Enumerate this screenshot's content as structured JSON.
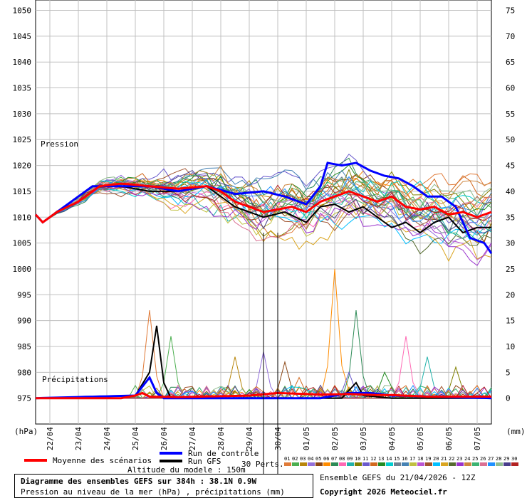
{
  "chart_data": {
    "type": "line",
    "title": "Diagramme des ensembles GEFS sur 384h : 38.1N 0.9W",
    "subtitle": "Pression au niveau de la mer (hPa) , précipitations (mm)",
    "run_info": "Ensemble GEFS du 21/04/2026 - 12Z",
    "copyright": "Copyright 2026 Meteociel.fr",
    "altitude": "Altitude du modele : 150m",
    "left_unit": "(hPa)",
    "right_unit": "(mm)",
    "pressure_label": "Pression",
    "precip_label": "Précipitations",
    "perts_label": "30 Perts.",
    "legend": {
      "mean": "Moyenne des scénarios",
      "control": "Run de contrôle",
      "gfs": "Run GFS"
    },
    "colors": {
      "mean": "#ff0000",
      "control": "#0000ff",
      "gfs": "#000000",
      "grid": "#c0c0c0"
    },
    "pressure_axis": {
      "min": 970,
      "max": 1052,
      "ticks": [
        1050,
        1045,
        1040,
        1035,
        1030,
        1025,
        1020,
        1015,
        1010,
        1005,
        1000,
        995,
        990,
        985,
        980,
        975
      ]
    },
    "precip_axis": {
      "min": -5,
      "max": 77,
      "ticks": [
        75,
        70,
        65,
        60,
        55,
        50,
        45,
        40,
        35,
        30,
        25,
        20,
        15,
        10,
        5,
        0
      ]
    },
    "x_labels": [
      "22/04",
      "23/04",
      "24/04",
      "25/04",
      "26/04",
      "27/04",
      "28/04",
      "29/04",
      "30/04",
      "01/05",
      "02/05",
      "03/05",
      "04/05",
      "05/05",
      "06/05",
      "07/05"
    ],
    "x_hours": {
      "start": 0,
      "end": 384,
      "step": 6
    },
    "member_codes": [
      "01",
      "02",
      "03",
      "04",
      "05",
      "06",
      "07",
      "08",
      "09",
      "10",
      "11",
      "12",
      "13",
      "14",
      "15",
      "16",
      "17",
      "18",
      "19",
      "20",
      "21",
      "22",
      "23",
      "24",
      "25",
      "26",
      "27",
      "28",
      "29",
      "30"
    ],
    "member_colors": [
      "#e07b39",
      "#4caf50",
      "#b8860b",
      "#9370db",
      "#8b4513",
      "#ff8c00",
      "#2e8b57",
      "#ff69b4",
      "#20b2aa",
      "#808000",
      "#6a5acd",
      "#d2691e",
      "#228b22",
      "#00ced1",
      "#708090",
      "#4682b4",
      "#c0c040",
      "#ba55d3",
      "#a0522d",
      "#00bfff",
      "#daa520",
      "#556b2f",
      "#9932cc",
      "#cd853f",
      "#3cb371",
      "#db7093",
      "#1e90ff",
      "#8fbc8f",
      "#483d8b",
      "#b22222"
    ],
    "series": [
      {
        "name": "Moyenne des scénarios",
        "pressure_key": [
          [
            0,
            1010.5
          ],
          [
            6,
            1009
          ],
          [
            18,
            1011
          ],
          [
            36,
            1013
          ],
          [
            54,
            1016
          ],
          [
            72,
            1016.5
          ],
          [
            96,
            1016
          ],
          [
            120,
            1015.5
          ],
          [
            144,
            1016
          ],
          [
            156,
            1015
          ],
          [
            168,
            1013
          ],
          [
            180,
            1012
          ],
          [
            192,
            1011
          ],
          [
            204,
            1011.5
          ],
          [
            216,
            1012
          ],
          [
            228,
            1011
          ],
          [
            240,
            1013
          ],
          [
            252,
            1014
          ],
          [
            264,
            1015
          ],
          [
            276,
            1014
          ],
          [
            288,
            1013
          ],
          [
            300,
            1014
          ],
          [
            312,
            1012
          ],
          [
            324,
            1011.5
          ],
          [
            336,
            1012
          ],
          [
            348,
            1010.5
          ],
          [
            360,
            1011
          ],
          [
            372,
            1010
          ],
          [
            384,
            1011
          ]
        ],
        "precip_key": [
          [
            0,
            0
          ],
          [
            72,
            0
          ],
          [
            84,
            0.5
          ],
          [
            90,
            1
          ],
          [
            96,
            0.3
          ],
          [
            120,
            0.2
          ],
          [
            180,
            0.5
          ],
          [
            204,
            1
          ],
          [
            240,
            0.7
          ],
          [
            264,
            0.8
          ],
          [
            288,
            0.6
          ],
          [
            300,
            0.6
          ],
          [
            330,
            0.3
          ],
          [
            384,
            0.3
          ]
        ]
      },
      {
        "name": "Run de contrôle",
        "pressure_key": [
          [
            0,
            1010.5
          ],
          [
            6,
            1009
          ],
          [
            24,
            1012
          ],
          [
            48,
            1016
          ],
          [
            72,
            1016
          ],
          [
            96,
            1016
          ],
          [
            120,
            1015
          ],
          [
            144,
            1016
          ],
          [
            168,
            1014.5
          ],
          [
            192,
            1015
          ],
          [
            210,
            1014
          ],
          [
            228,
            1012.5
          ],
          [
            240,
            1016
          ],
          [
            246,
            1020.5
          ],
          [
            258,
            1020
          ],
          [
            270,
            1020.5
          ],
          [
            282,
            1019
          ],
          [
            294,
            1018
          ],
          [
            306,
            1017.5
          ],
          [
            318,
            1016
          ],
          [
            330,
            1014
          ],
          [
            342,
            1014
          ],
          [
            354,
            1012
          ],
          [
            366,
            1006
          ],
          [
            378,
            1005
          ],
          [
            384,
            1003
          ]
        ],
        "precip_key": [
          [
            0,
            0
          ],
          [
            84,
            0.5
          ],
          [
            96,
            4
          ],
          [
            102,
            1
          ],
          [
            108,
            0
          ],
          [
            240,
            0
          ],
          [
            264,
            1
          ],
          [
            282,
            1
          ],
          [
            300,
            0.5
          ],
          [
            384,
            0
          ]
        ]
      },
      {
        "name": "Run GFS",
        "pressure_key": [
          [
            0,
            1010.5
          ],
          [
            6,
            1009
          ],
          [
            24,
            1012
          ],
          [
            48,
            1016
          ],
          [
            72,
            1016
          ],
          [
            96,
            1015
          ],
          [
            120,
            1015
          ],
          [
            144,
            1016
          ],
          [
            168,
            1012
          ],
          [
            192,
            1010
          ],
          [
            210,
            1011
          ],
          [
            228,
            1009
          ],
          [
            240,
            1012
          ],
          [
            252,
            1012.5
          ],
          [
            264,
            1011
          ],
          [
            276,
            1012
          ],
          [
            288,
            1010
          ],
          [
            300,
            1008
          ],
          [
            312,
            1009
          ],
          [
            324,
            1007
          ],
          [
            336,
            1009
          ],
          [
            348,
            1010
          ],
          [
            360,
            1007
          ],
          [
            372,
            1008
          ],
          [
            384,
            1008
          ]
        ],
        "precip_key": [
          [
            0,
            0
          ],
          [
            84,
            0.5
          ],
          [
            96,
            5
          ],
          [
            102,
            14
          ],
          [
            108,
            3
          ],
          [
            114,
            0
          ],
          [
            258,
            0
          ],
          [
            270,
            3
          ],
          [
            276,
            0.5
          ],
          [
            300,
            0
          ],
          [
            384,
            0
          ]
        ]
      }
    ],
    "precip_peaks": [
      [
        96,
        17
      ],
      [
        114,
        12
      ],
      [
        168,
        8
      ],
      [
        192,
        9
      ],
      [
        210,
        7
      ],
      [
        252,
        25
      ],
      [
        270,
        17
      ],
      [
        312,
        12
      ],
      [
        330,
        8
      ],
      [
        354,
        6
      ],
      [
        264,
        5
      ],
      [
        222,
        4
      ],
      [
        294,
        5
      ]
    ],
    "x_axis_hour_ticks": [
      12,
      36,
      60,
      84,
      108,
      132,
      156,
      180,
      204,
      228,
      252,
      276,
      300,
      324,
      348,
      372
    ],
    "vertical_markers_hours": [
      192,
      204
    ],
    "grid": true,
    "legend_placement": "bottom"
  }
}
